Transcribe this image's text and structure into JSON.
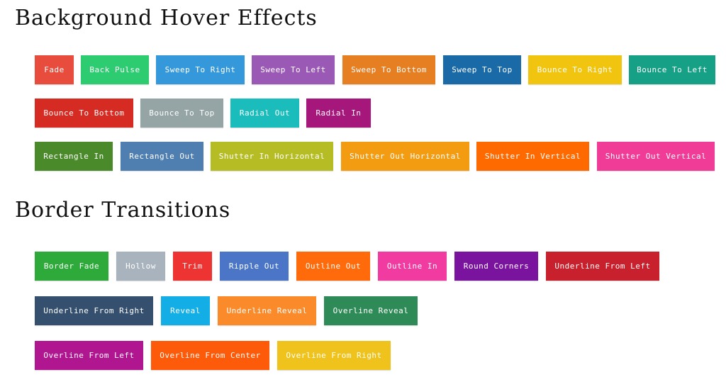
{
  "sections": {
    "background": {
      "title": "Background Hover Effects",
      "rows": [
        [
          {
            "label": "Fade",
            "color": "#e74c3c"
          },
          {
            "label": "Back Pulse",
            "color": "#2ecc71"
          },
          {
            "label": "Sweep To Right",
            "color": "#3498db"
          },
          {
            "label": "Sweep To Left",
            "color": "#9b59b6"
          },
          {
            "label": "Sweep To Bottom",
            "color": "#e67e22"
          },
          {
            "label": "Sweep To Top",
            "color": "#1a6aa8"
          },
          {
            "label": "Bounce To Right",
            "color": "#f1c40f"
          },
          {
            "label": "Bounce To Left",
            "color": "#16a085"
          }
        ],
        [
          {
            "label": "Bounce To Bottom",
            "color": "#d62b22"
          },
          {
            "label": "Bounce To Top",
            "color": "#95a5a6"
          },
          {
            "label": "Radial Out",
            "color": "#1abcbc"
          },
          {
            "label": "Radial In",
            "color": "#a5177a"
          }
        ],
        [
          {
            "label": "Rectangle In",
            "color": "#4a8a2a"
          },
          {
            "label": "Rectangle Out",
            "color": "#4f7fb0"
          },
          {
            "label": "Shutter In Horizontal",
            "color": "#b6bd24"
          },
          {
            "label": "Shutter Out Horizontal",
            "color": "#f39c12"
          },
          {
            "label": "Shutter In Vertical",
            "color": "#ff6a00"
          },
          {
            "label": "Shutter Out Vertical",
            "color": "#f03c96"
          }
        ]
      ]
    },
    "border": {
      "title": "Border Transitions",
      "rows": [
        [
          {
            "label": "Border Fade",
            "color": "#2eaa3a"
          },
          {
            "label": "Hollow",
            "color": "#a9b3bd"
          },
          {
            "label": "Trim",
            "color": "#ee3333"
          },
          {
            "label": "Ripple Out",
            "color": "#4b76c8"
          },
          {
            "label": "Outline Out",
            "color": "#ff6a0a"
          },
          {
            "label": "Outline In",
            "color": "#f23ba0"
          },
          {
            "label": "Round Corners",
            "color": "#7a139e"
          },
          {
            "label": "Underline From Left",
            "color": "#c8202c"
          }
        ],
        [
          {
            "label": "Underline From Right",
            "color": "#34506e"
          },
          {
            "label": "Reveal",
            "color": "#14aee6"
          },
          {
            "label": "Underline Reveal",
            "color": "#fb8a2a"
          },
          {
            "label": "Overline Reveal",
            "color": "#2e8b57"
          }
        ],
        [
          {
            "label": "Overline From Left",
            "color": "#b0168f"
          },
          {
            "label": "Overline From Center",
            "color": "#fd5a0a"
          },
          {
            "label": "Overline From Right",
            "color": "#efc31c"
          }
        ]
      ]
    }
  }
}
